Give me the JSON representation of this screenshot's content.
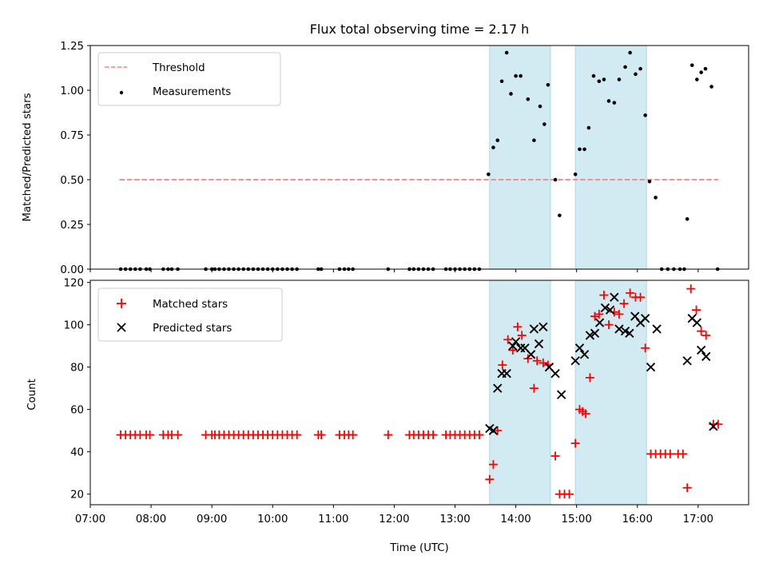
{
  "chart_data": [
    {
      "type": "scatter",
      "title": "Flux total observing time = 2.17 h",
      "ylabel": "Matched/Predicted stars",
      "xlabel": "",
      "x_axis": "time (h, UTC)",
      "xlim": [
        7.0,
        17.83
      ],
      "ylim": [
        0,
        1.25
      ],
      "yticks": [
        0,
        0.25,
        0.5,
        0.75,
        1.0,
        1.25
      ],
      "ytick_labels": [
        "0.00",
        "0.25",
        "0.50",
        "0.75",
        "1.00",
        "1.25"
      ],
      "shaded_intervals": [
        [
          13.57,
          14.57
        ],
        [
          14.98,
          16.15
        ]
      ],
      "shade_color": "#add8e6",
      "legend_position": "upper-left",
      "threshold": {
        "name": "Threshold",
        "value": 0.5,
        "x_range": [
          7.48,
          17.33
        ],
        "color": "#ff7f7f",
        "style": "dashed"
      },
      "series": [
        {
          "name": "Measurements",
          "color": "#000000",
          "marker": "dot",
          "points": [
            [
              7.5,
              0
            ],
            [
              7.58,
              0
            ],
            [
              7.66,
              0
            ],
            [
              7.74,
              0
            ],
            [
              7.82,
              0
            ],
            [
              7.92,
              0
            ],
            [
              7.98,
              0
            ],
            [
              8.2,
              0
            ],
            [
              8.28,
              0
            ],
            [
              8.34,
              0
            ],
            [
              8.44,
              0
            ],
            [
              8.9,
              0
            ],
            [
              9.0,
              0
            ],
            [
              9.05,
              0
            ],
            [
              9.12,
              0
            ],
            [
              9.2,
              0
            ],
            [
              9.28,
              0
            ],
            [
              9.36,
              0
            ],
            [
              9.44,
              0
            ],
            [
              9.52,
              0
            ],
            [
              9.6,
              0
            ],
            [
              9.68,
              0
            ],
            [
              9.76,
              0
            ],
            [
              9.84,
              0
            ],
            [
              9.92,
              0
            ],
            [
              10.0,
              0
            ],
            [
              10.08,
              0
            ],
            [
              10.16,
              0
            ],
            [
              10.24,
              0
            ],
            [
              10.32,
              0
            ],
            [
              10.4,
              0
            ],
            [
              10.75,
              0
            ],
            [
              10.8,
              0
            ],
            [
              11.1,
              0
            ],
            [
              11.18,
              0
            ],
            [
              11.25,
              0
            ],
            [
              11.32,
              0
            ],
            [
              11.9,
              0
            ],
            [
              12.25,
              0
            ],
            [
              12.32,
              0
            ],
            [
              12.4,
              0
            ],
            [
              12.48,
              0
            ],
            [
              12.56,
              0
            ],
            [
              12.64,
              0
            ],
            [
              12.85,
              0
            ],
            [
              12.92,
              0
            ],
            [
              13.0,
              0
            ],
            [
              13.08,
              0
            ],
            [
              13.16,
              0
            ],
            [
              13.24,
              0
            ],
            [
              13.32,
              0
            ],
            [
              13.4,
              0
            ],
            [
              13.55,
              0.53
            ],
            [
              13.63,
              0.68
            ],
            [
              13.7,
              0.72
            ],
            [
              13.77,
              1.05
            ],
            [
              13.85,
              1.21
            ],
            [
              13.92,
              0.98
            ],
            [
              14.0,
              1.08
            ],
            [
              14.08,
              1.08
            ],
            [
              14.2,
              0.95
            ],
            [
              14.3,
              0.72
            ],
            [
              14.4,
              0.91
            ],
            [
              14.47,
              0.81
            ],
            [
              14.53,
              1.03
            ],
            [
              14.65,
              0.5
            ],
            [
              14.72,
              0.3
            ],
            [
              14.98,
              0.53
            ],
            [
              15.05,
              0.67
            ],
            [
              15.13,
              0.67
            ],
            [
              15.2,
              0.79
            ],
            [
              15.28,
              1.08
            ],
            [
              15.37,
              1.05
            ],
            [
              15.45,
              1.06
            ],
            [
              15.53,
              0.94
            ],
            [
              15.62,
              0.93
            ],
            [
              15.7,
              1.06
            ],
            [
              15.8,
              1.13
            ],
            [
              15.88,
              1.21
            ],
            [
              15.97,
              1.09
            ],
            [
              16.05,
              1.12
            ],
            [
              16.13,
              0.86
            ],
            [
              16.2,
              0.49
            ],
            [
              16.3,
              0.4
            ],
            [
              16.4,
              0
            ],
            [
              16.5,
              0
            ],
            [
              16.6,
              0
            ],
            [
              16.7,
              0
            ],
            [
              16.77,
              0
            ],
            [
              16.82,
              0.28
            ],
            [
              16.9,
              1.14
            ],
            [
              16.98,
              1.06
            ],
            [
              17.05,
              1.1
            ],
            [
              17.12,
              1.12
            ],
            [
              17.22,
              1.02
            ],
            [
              17.32,
              0
            ]
          ]
        }
      ]
    },
    {
      "type": "scatter",
      "title": "",
      "ylabel": "Count",
      "xlabel": "Time (UTC)",
      "xlim": [
        7.0,
        17.83
      ],
      "ylim": [
        15,
        121
      ],
      "yticks": [
        20,
        40,
        60,
        80,
        100,
        120
      ],
      "ytick_labels": [
        "20",
        "40",
        "60",
        "80",
        "100",
        "120"
      ],
      "xticks": [
        7,
        8,
        9,
        10,
        11,
        12,
        13,
        14,
        15,
        16,
        17
      ],
      "xtick_labels": [
        "07:00",
        "08:00",
        "09:00",
        "10:00",
        "11:00",
        "12:00",
        "13:00",
        "14:00",
        "15:00",
        "16:00",
        "17:00"
      ],
      "shaded_intervals": [
        [
          13.57,
          14.57
        ],
        [
          14.98,
          16.15
        ]
      ],
      "shade_color": "#add8e6",
      "legend_position": "upper-left",
      "series": [
        {
          "name": "Matched stars",
          "color": "#ff0000",
          "marker": "plus",
          "points": [
            [
              7.5,
              48
            ],
            [
              7.58,
              48
            ],
            [
              7.66,
              48
            ],
            [
              7.74,
              48
            ],
            [
              7.82,
              48
            ],
            [
              7.92,
              48
            ],
            [
              7.98,
              48
            ],
            [
              8.2,
              48
            ],
            [
              8.28,
              48
            ],
            [
              8.34,
              48
            ],
            [
              8.44,
              48
            ],
            [
              8.9,
              48
            ],
            [
              9.0,
              48
            ],
            [
              9.05,
              48
            ],
            [
              9.12,
              48
            ],
            [
              9.2,
              48
            ],
            [
              9.28,
              48
            ],
            [
              9.36,
              48
            ],
            [
              9.44,
              48
            ],
            [
              9.52,
              48
            ],
            [
              9.6,
              48
            ],
            [
              9.68,
              48
            ],
            [
              9.76,
              48
            ],
            [
              9.84,
              48
            ],
            [
              9.92,
              48
            ],
            [
              10.0,
              48
            ],
            [
              10.08,
              48
            ],
            [
              10.16,
              48
            ],
            [
              10.24,
              48
            ],
            [
              10.32,
              48
            ],
            [
              10.4,
              48
            ],
            [
              10.75,
              48
            ],
            [
              10.8,
              48
            ],
            [
              11.1,
              48
            ],
            [
              11.18,
              48
            ],
            [
              11.25,
              48
            ],
            [
              11.32,
              48
            ],
            [
              11.9,
              48
            ],
            [
              12.25,
              48
            ],
            [
              12.32,
              48
            ],
            [
              12.4,
              48
            ],
            [
              12.48,
              48
            ],
            [
              12.56,
              48
            ],
            [
              12.64,
              48
            ],
            [
              12.85,
              48
            ],
            [
              12.92,
              48
            ],
            [
              13.0,
              48
            ],
            [
              13.08,
              48
            ],
            [
              13.16,
              48
            ],
            [
              13.24,
              48
            ],
            [
              13.32,
              48
            ],
            [
              13.4,
              48
            ],
            [
              13.57,
              27
            ],
            [
              13.63,
              34
            ],
            [
              13.7,
              50
            ],
            [
              13.78,
              81
            ],
            [
              13.87,
              93
            ],
            [
              13.95,
              88
            ],
            [
              14.03,
              99
            ],
            [
              14.1,
              95
            ],
            [
              14.2,
              84
            ],
            [
              14.3,
              70
            ],
            [
              14.35,
              83
            ],
            [
              14.45,
              82
            ],
            [
              14.53,
              81
            ],
            [
              14.65,
              38
            ],
            [
              14.72,
              20
            ],
            [
              14.8,
              20
            ],
            [
              14.88,
              20
            ],
            [
              14.98,
              44
            ],
            [
              15.05,
              60
            ],
            [
              15.1,
              59
            ],
            [
              15.15,
              58
            ],
            [
              15.22,
              75
            ],
            [
              15.3,
              104
            ],
            [
              15.37,
              105
            ],
            [
              15.45,
              114
            ],
            [
              15.53,
              100
            ],
            [
              15.62,
              106
            ],
            [
              15.7,
              105
            ],
            [
              15.78,
              110
            ],
            [
              15.88,
              115
            ],
            [
              15.97,
              113
            ],
            [
              16.05,
              113
            ],
            [
              16.13,
              89
            ],
            [
              16.22,
              39
            ],
            [
              16.3,
              39
            ],
            [
              16.38,
              39
            ],
            [
              16.46,
              39
            ],
            [
              16.54,
              39
            ],
            [
              16.67,
              39
            ],
            [
              16.75,
              39
            ],
            [
              16.82,
              23
            ],
            [
              16.88,
              117
            ],
            [
              16.97,
              107
            ],
            [
              17.05,
              97
            ],
            [
              17.13,
              95
            ],
            [
              17.25,
              53
            ],
            [
              17.33,
              53
            ]
          ]
        },
        {
          "name": "Predicted stars",
          "color": "#000000",
          "marker": "x",
          "points": [
            [
              13.57,
              51
            ],
            [
              13.63,
              50
            ],
            [
              13.7,
              70
            ],
            [
              13.77,
              77
            ],
            [
              13.85,
              77
            ],
            [
              13.95,
              90
            ],
            [
              14.0,
              92
            ],
            [
              14.08,
              89
            ],
            [
              14.15,
              89
            ],
            [
              14.25,
              86
            ],
            [
              14.3,
              98
            ],
            [
              14.38,
              91
            ],
            [
              14.45,
              99
            ],
            [
              14.55,
              80
            ],
            [
              14.65,
              77
            ],
            [
              14.75,
              67
            ],
            [
              14.98,
              83
            ],
            [
              15.05,
              89
            ],
            [
              15.13,
              86
            ],
            [
              15.22,
              95
            ],
            [
              15.3,
              96
            ],
            [
              15.38,
              101
            ],
            [
              15.47,
              108
            ],
            [
              15.55,
              107
            ],
            [
              15.62,
              113
            ],
            [
              15.7,
              98
            ],
            [
              15.8,
              97
            ],
            [
              15.87,
              96
            ],
            [
              15.96,
              104
            ],
            [
              16.05,
              101
            ],
            [
              16.13,
              103
            ],
            [
              16.22,
              80
            ],
            [
              16.32,
              98
            ],
            [
              16.82,
              83
            ],
            [
              16.9,
              103
            ],
            [
              16.98,
              101
            ],
            [
              17.05,
              88
            ],
            [
              17.13,
              85
            ],
            [
              17.25,
              52
            ]
          ]
        }
      ]
    }
  ],
  "legend": {
    "top": {
      "threshold_label": "Threshold",
      "measurements_label": "Measurements"
    },
    "bottom": {
      "matched_label": "Matched stars",
      "predicted_label": "Predicted stars"
    }
  }
}
